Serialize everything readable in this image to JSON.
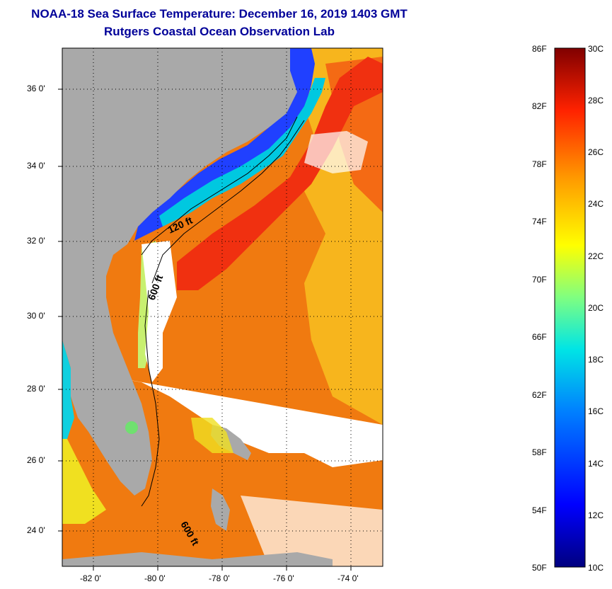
{
  "header": {
    "title": "NOAA-18 Sea Surface Temperature:  December 16, 2019 1403 GMT",
    "subtitle": "Rutgers Coastal Ocean Observation Lab"
  },
  "map": {
    "lat_labels": [
      "36 0'",
      "34 0'",
      "32 0'",
      "30 0'",
      "28 0'",
      "26 0'",
      "24 0'"
    ],
    "lon_labels": [
      "-82 0'",
      "-80 0'",
      "-78 0'",
      "-76 0'",
      "-74 0'"
    ],
    "contour_labels": [
      "120 ft",
      "600 ft",
      "600 ft"
    ],
    "colors": {
      "land": "#a9a9a9",
      "cloud": "#ffffff"
    }
  },
  "colorbar": {
    "fahrenheit_labels": [
      "86F",
      "82F",
      "78F",
      "74F",
      "70F",
      "66F",
      "62F",
      "58F",
      "54F",
      "50F"
    ],
    "celsius_labels": [
      "30C",
      "28C",
      "26C",
      "24C",
      "22C",
      "20C",
      "18C",
      "16C",
      "14C",
      "12C",
      "10C"
    ]
  }
}
